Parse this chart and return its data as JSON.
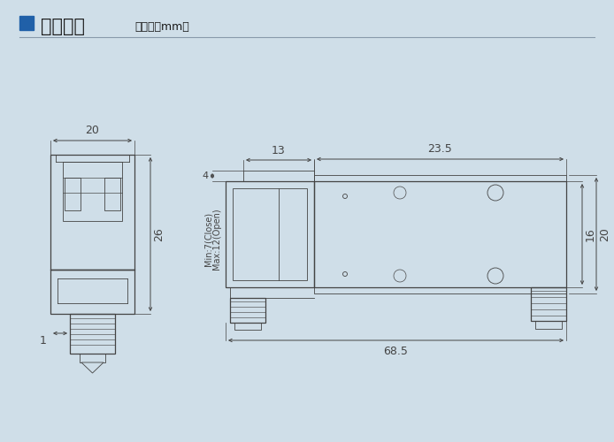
{
  "bg_color": "#cfdee8",
  "title_text": "外观尺寸",
  "title_sub": "（单位：mm）",
  "title_color": "#1a1a1a",
  "blue_box_color": "#2060a8",
  "dim_color": "#555555",
  "line_color": "#444444",
  "dim_text_color": "#444444"
}
